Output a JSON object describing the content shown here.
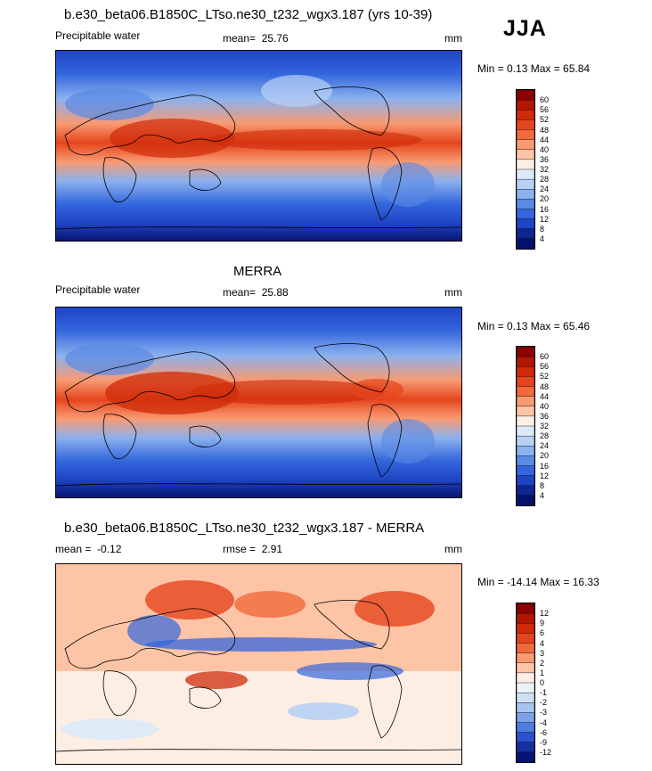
{
  "season": "JJA",
  "panels": [
    {
      "title": "b.e30_beta06.B1850C_LTso.ne30_t232_wgx3.187 (yrs 10-39)",
      "field": "Precipitable water",
      "mean_label": "mean=",
      "mean": "25.76",
      "units": "mm",
      "minmax_label": "Min =  0.13 Max =  65.84",
      "colorbar": {
        "labels": [
          "60",
          "56",
          "52",
          "48",
          "44",
          "40",
          "36",
          "32",
          "28",
          "24",
          "20",
          "16",
          "12",
          "8",
          "4"
        ],
        "colors": [
          "#8b0000",
          "#b21500",
          "#cf2b0a",
          "#e5451d",
          "#f06a3c",
          "#f89a72",
          "#fdc4a6",
          "#fdeee4",
          "#dce9f8",
          "#b8d0f4",
          "#8bb1ee",
          "#5b8ae4",
          "#3366dd",
          "#1f44c4",
          "#0f2590",
          "#04106a"
        ]
      }
    },
    {
      "title": "MERRA",
      "field": "Precipitable water",
      "mean_label": "mean=",
      "mean": "25.88",
      "units": "mm",
      "minmax_label": "Min =  0.13 Max =  65.46",
      "colorbar": {
        "labels": [
          "60",
          "56",
          "52",
          "48",
          "44",
          "40",
          "36",
          "32",
          "28",
          "24",
          "20",
          "16",
          "12",
          "8",
          "4"
        ],
        "colors": [
          "#8b0000",
          "#b21500",
          "#cf2b0a",
          "#e5451d",
          "#f06a3c",
          "#f89a72",
          "#fdc4a6",
          "#fdeee4",
          "#dce9f8",
          "#b8d0f4",
          "#8bb1ee",
          "#5b8ae4",
          "#3366dd",
          "#1f44c4",
          "#0f2590",
          "#04106a"
        ]
      }
    },
    {
      "title": "b.e30_beta06.B1850C_LTso.ne30_t232_wgx3.187 - MERRA",
      "field": "",
      "mean_label": "mean =",
      "mean": "-0.12",
      "rmse_label": "rmse =",
      "rmse": "2.91",
      "units": "mm",
      "minmax_label": "Min = -14.14 Max =  16.33",
      "colorbar": {
        "labels": [
          "12",
          "9",
          "6",
          "4",
          "3",
          "2",
          "1",
          "0",
          "-1",
          "-2",
          "-3",
          "-4",
          "-6",
          "-9",
          "-12"
        ],
        "colors": [
          "#8b0000",
          "#b21500",
          "#cf2b0a",
          "#e5451d",
          "#f06a3c",
          "#f89a72",
          "#fdc4a6",
          "#fdeee4",
          "#eef3fb",
          "#cfdff5",
          "#a9c3ef",
          "#7da2e8",
          "#4f7ce0",
          "#2b52cf",
          "#1530a0",
          "#061474"
        ]
      }
    }
  ]
}
